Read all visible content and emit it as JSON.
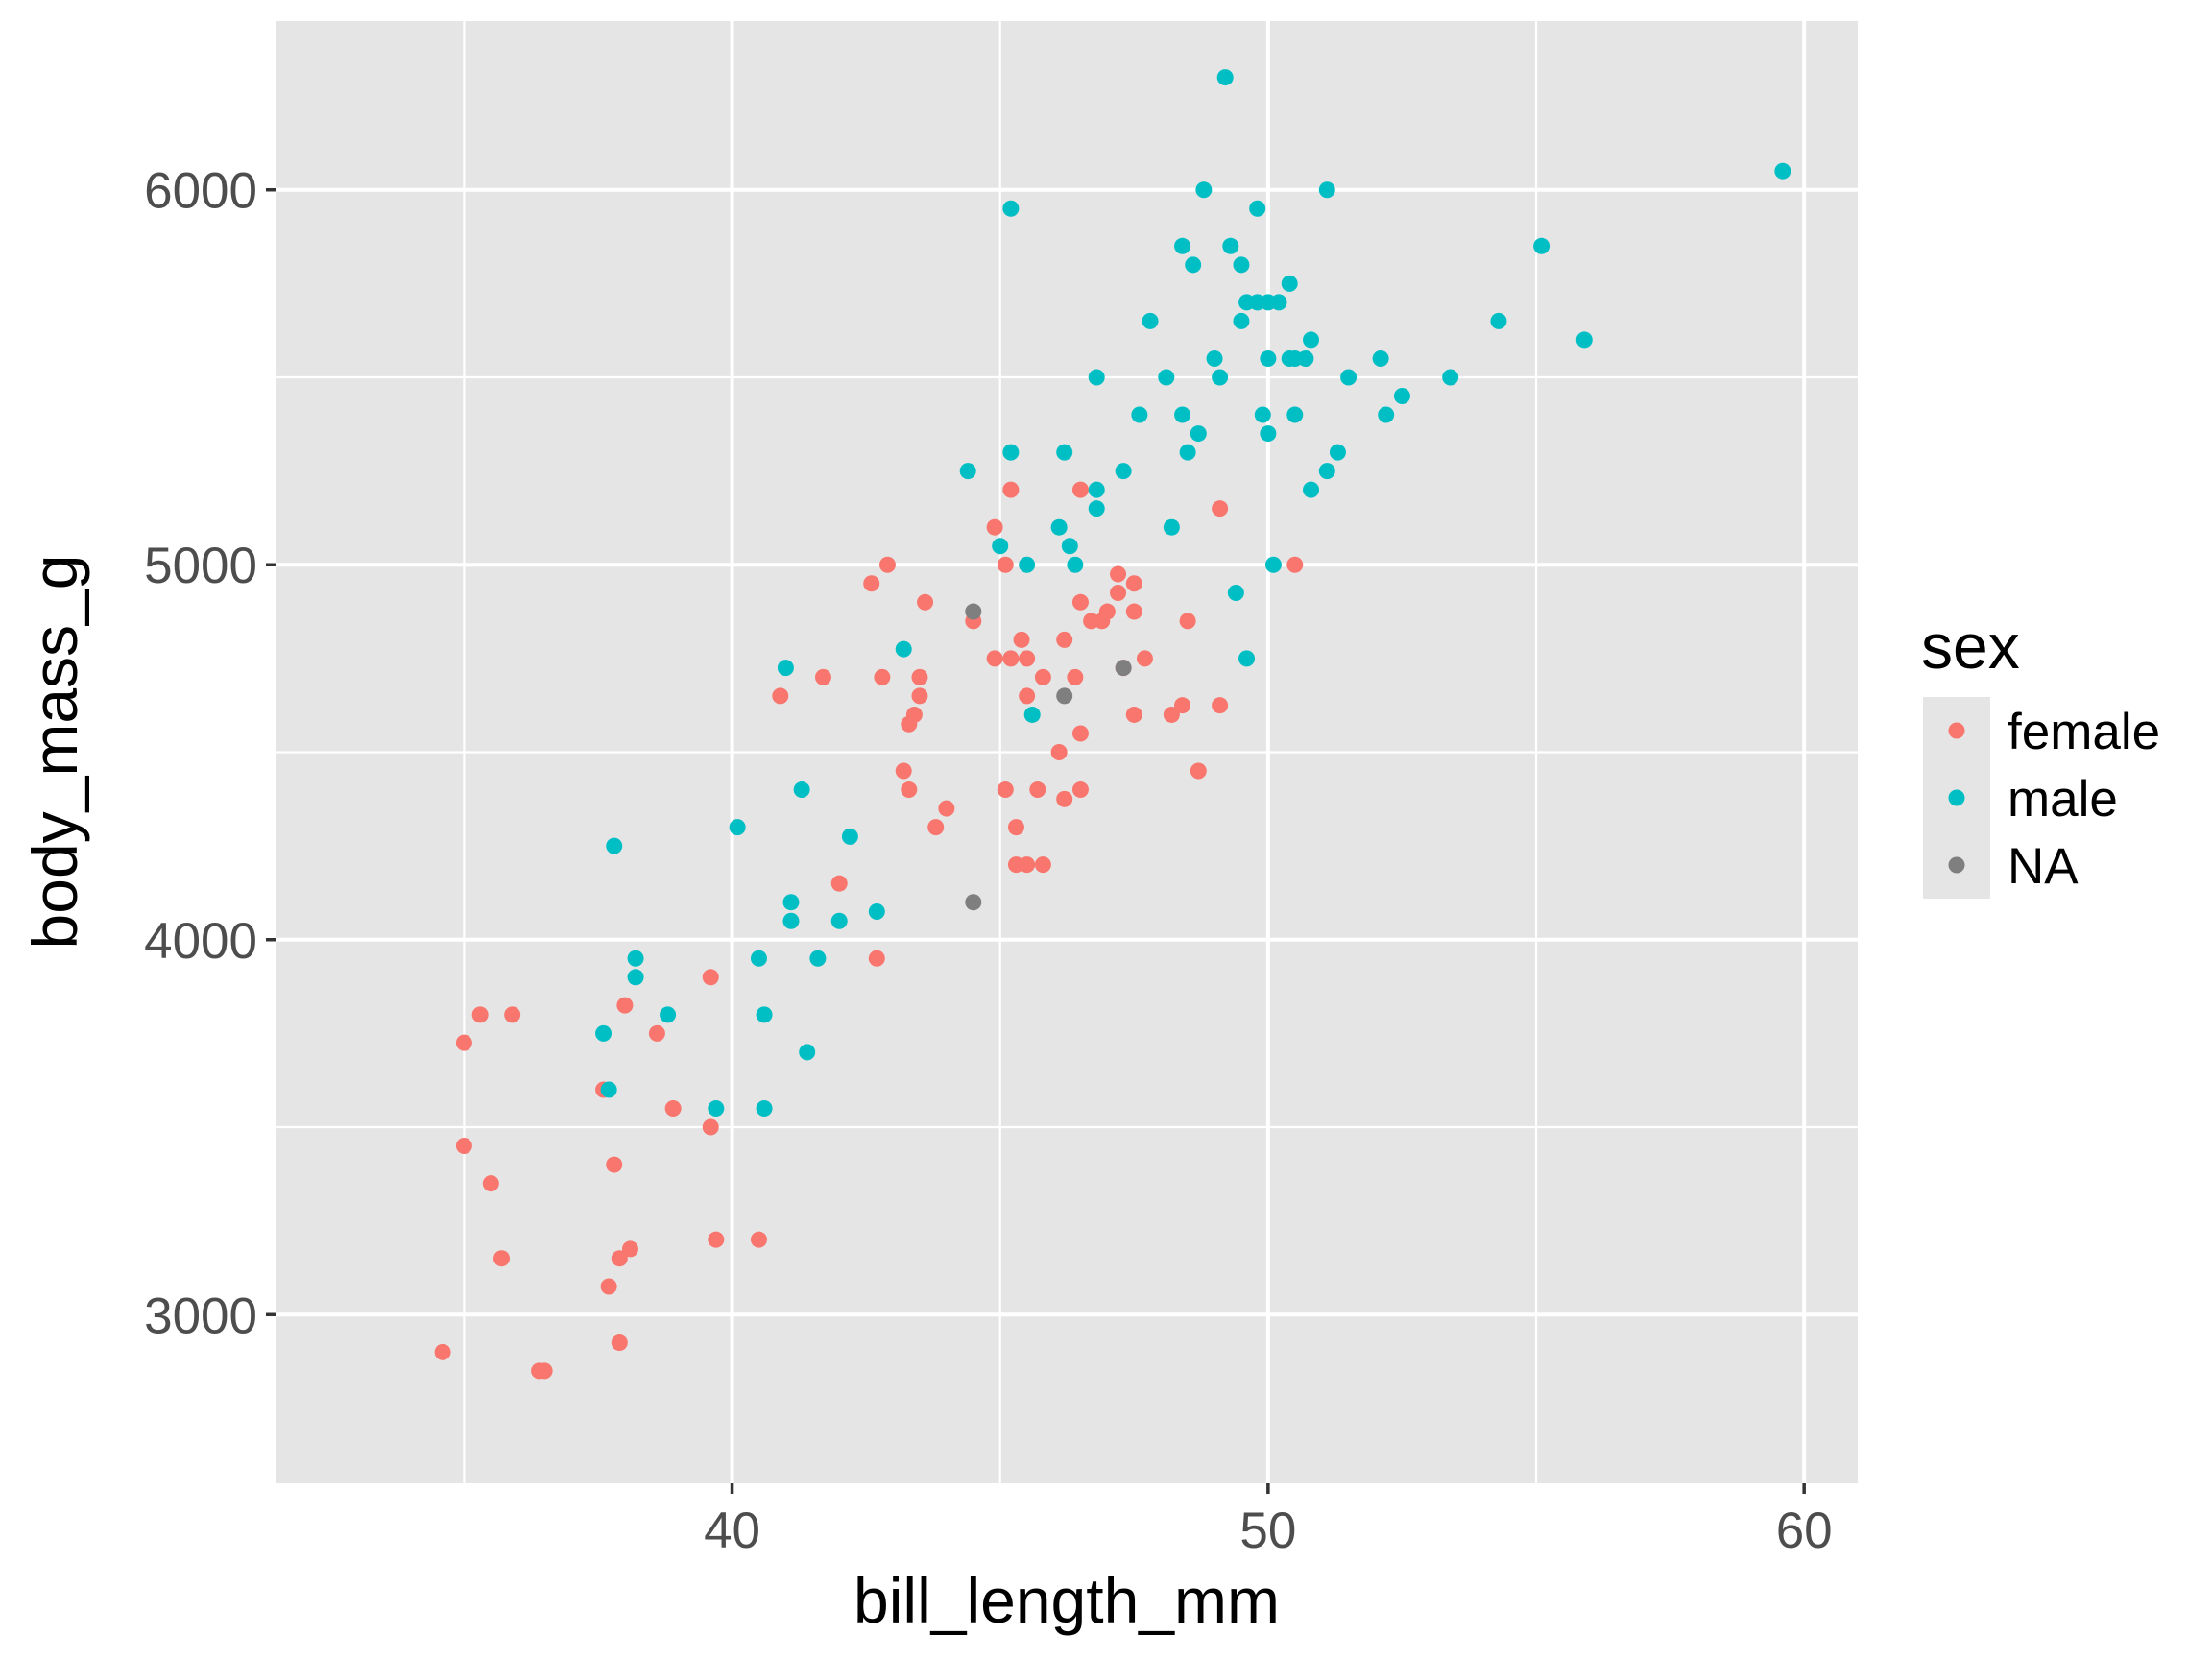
{
  "chart_data": {
    "type": "scatter",
    "xlabel": "bill_length_mm",
    "ylabel": "body_mass_g",
    "xlim": [
      31.5,
      61
    ],
    "ylim": [
      2550,
      6450
    ],
    "x_ticks": [
      40,
      50,
      60
    ],
    "y_ticks": [
      3000,
      4000,
      5000,
      6000
    ],
    "x_tick_labels": [
      "40",
      "50",
      "60"
    ],
    "y_tick_labels": [
      "3000",
      "4000",
      "5000",
      "6000"
    ],
    "grid": true,
    "legend": {
      "title": "sex",
      "placement": "right",
      "entries": [
        "female",
        "male",
        "NA"
      ]
    },
    "colors": {
      "panel": "#e5e5e5",
      "grid": "#ffffff",
      "female": "#f8766d",
      "male": "#00bfc4",
      "NA": "#7f7f7f"
    },
    "series": [
      {
        "name": "female",
        "points": [
          [
            34.6,
            2900
          ],
          [
            35.0,
            3450
          ],
          [
            35.0,
            3725
          ],
          [
            35.3,
            3800
          ],
          [
            35.5,
            3350
          ],
          [
            35.7,
            3150
          ],
          [
            35.9,
            3800
          ],
          [
            36.4,
            2850
          ],
          [
            36.5,
            2850
          ],
          [
            37.6,
            3600
          ],
          [
            37.7,
            3075
          ],
          [
            37.8,
            3400
          ],
          [
            37.9,
            3150
          ],
          [
            37.9,
            2925
          ],
          [
            38.0,
            3825
          ],
          [
            38.1,
            3175
          ],
          [
            38.6,
            3750
          ],
          [
            38.9,
            3550
          ],
          [
            39.6,
            3900
          ],
          [
            39.6,
            3500
          ],
          [
            39.7,
            3200
          ],
          [
            40.5,
            3200
          ],
          [
            40.9,
            4650
          ],
          [
            41.7,
            4700
          ],
          [
            42.0,
            4150
          ],
          [
            42.6,
            4950
          ],
          [
            42.7,
            3950
          ],
          [
            42.8,
            4700
          ],
          [
            42.9,
            5000
          ],
          [
            43.2,
            4450
          ],
          [
            43.3,
            4400
          ],
          [
            43.3,
            4575
          ],
          [
            43.4,
            4600
          ],
          [
            43.5,
            4700
          ],
          [
            43.5,
            4650
          ],
          [
            43.6,
            4900
          ],
          [
            43.8,
            4300
          ],
          [
            44.0,
            4350
          ],
          [
            44.5,
            4850
          ],
          [
            44.9,
            5100
          ],
          [
            44.9,
            4750
          ],
          [
            45.1,
            5000
          ],
          [
            45.1,
            4400
          ],
          [
            45.2,
            5200
          ],
          [
            45.2,
            4750
          ],
          [
            45.3,
            4300
          ],
          [
            45.3,
            4200
          ],
          [
            45.4,
            4800
          ],
          [
            45.5,
            4200
          ],
          [
            45.5,
            4650
          ],
          [
            45.5,
            4750
          ],
          [
            45.7,
            4400
          ],
          [
            45.8,
            4200
          ],
          [
            45.8,
            4700
          ],
          [
            46.1,
            4500
          ],
          [
            46.2,
            4800
          ],
          [
            46.2,
            4375
          ],
          [
            46.4,
            4700
          ],
          [
            46.5,
            4550
          ],
          [
            46.5,
            4900
          ],
          [
            46.5,
            4400
          ],
          [
            46.5,
            5200
          ],
          [
            46.7,
            4850
          ],
          [
            46.9,
            4850
          ],
          [
            47.0,
            4875
          ],
          [
            47.2,
            4925
          ],
          [
            47.2,
            4975
          ],
          [
            47.3,
            4725
          ],
          [
            47.5,
            4950
          ],
          [
            47.5,
            4875
          ],
          [
            47.5,
            4600
          ],
          [
            47.7,
            4750
          ],
          [
            48.2,
            4600
          ],
          [
            48.4,
            4625
          ],
          [
            48.5,
            4850
          ],
          [
            48.7,
            4450
          ],
          [
            49.1,
            5150
          ],
          [
            49.1,
            4625
          ],
          [
            50.5,
            5000
          ]
        ]
      },
      {
        "name": "male",
        "points": [
          [
            37.6,
            3750
          ],
          [
            37.7,
            3600
          ],
          [
            37.8,
            4250
          ],
          [
            38.2,
            3950
          ],
          [
            38.2,
            3900
          ],
          [
            38.8,
            3800
          ],
          [
            39.7,
            3550
          ],
          [
            40.1,
            4300
          ],
          [
            40.5,
            3950
          ],
          [
            40.6,
            3800
          ],
          [
            40.6,
            3550
          ],
          [
            41.0,
            4725
          ],
          [
            41.1,
            4100
          ],
          [
            41.1,
            4050
          ],
          [
            41.3,
            4400
          ],
          [
            41.4,
            3700
          ],
          [
            41.6,
            3950
          ],
          [
            42.0,
            4050
          ],
          [
            42.2,
            4275
          ],
          [
            42.7,
            4075
          ],
          [
            43.2,
            4775
          ],
          [
            44.4,
            5250
          ],
          [
            45.0,
            5050
          ],
          [
            45.2,
            5950
          ],
          [
            45.2,
            5300
          ],
          [
            45.5,
            5000
          ],
          [
            45.6,
            4600
          ],
          [
            46.1,
            5100
          ],
          [
            46.2,
            5300
          ],
          [
            46.3,
            5050
          ],
          [
            46.4,
            5000
          ],
          [
            46.8,
            5200
          ],
          [
            46.8,
            5150
          ],
          [
            46.8,
            5500
          ],
          [
            47.3,
            5250
          ],
          [
            47.6,
            5400
          ],
          [
            47.8,
            5650
          ],
          [
            48.1,
            5500
          ],
          [
            48.2,
            5100
          ],
          [
            48.4,
            5850
          ],
          [
            48.4,
            5400
          ],
          [
            48.5,
            5300
          ],
          [
            48.6,
            5800
          ],
          [
            48.7,
            5350
          ],
          [
            48.8,
            6000
          ],
          [
            49.0,
            5550
          ],
          [
            49.1,
            5500
          ],
          [
            49.2,
            6300
          ],
          [
            49.3,
            5850
          ],
          [
            49.4,
            4925
          ],
          [
            49.5,
            5650
          ],
          [
            49.5,
            5800
          ],
          [
            49.6,
            5700
          ],
          [
            49.6,
            4750
          ],
          [
            49.8,
            5700
          ],
          [
            49.8,
            5950
          ],
          [
            49.9,
            5400
          ],
          [
            50.0,
            5700
          ],
          [
            50.0,
            5350
          ],
          [
            50.0,
            5550
          ],
          [
            50.1,
            5000
          ],
          [
            50.2,
            5700
          ],
          [
            50.4,
            5750
          ],
          [
            50.4,
            5550
          ],
          [
            50.5,
            5550
          ],
          [
            50.5,
            5400
          ],
          [
            50.7,
            5550
          ],
          [
            50.8,
            5200
          ],
          [
            50.8,
            5600
          ],
          [
            51.1,
            6000
          ],
          [
            51.1,
            5250
          ],
          [
            51.3,
            5300
          ],
          [
            51.5,
            5500
          ],
          [
            52.1,
            5550
          ],
          [
            52.2,
            5400
          ],
          [
            52.5,
            5450
          ],
          [
            53.4,
            5500
          ],
          [
            54.3,
            5650
          ],
          [
            55.1,
            5850
          ],
          [
            55.9,
            5600
          ],
          [
            59.6,
            6050
          ]
        ]
      },
      {
        "name": "NA",
        "points": [
          [
            44.5,
            4875
          ],
          [
            44.5,
            4100
          ],
          [
            46.2,
            4650
          ],
          [
            47.3,
            4725
          ]
        ]
      }
    ]
  }
}
